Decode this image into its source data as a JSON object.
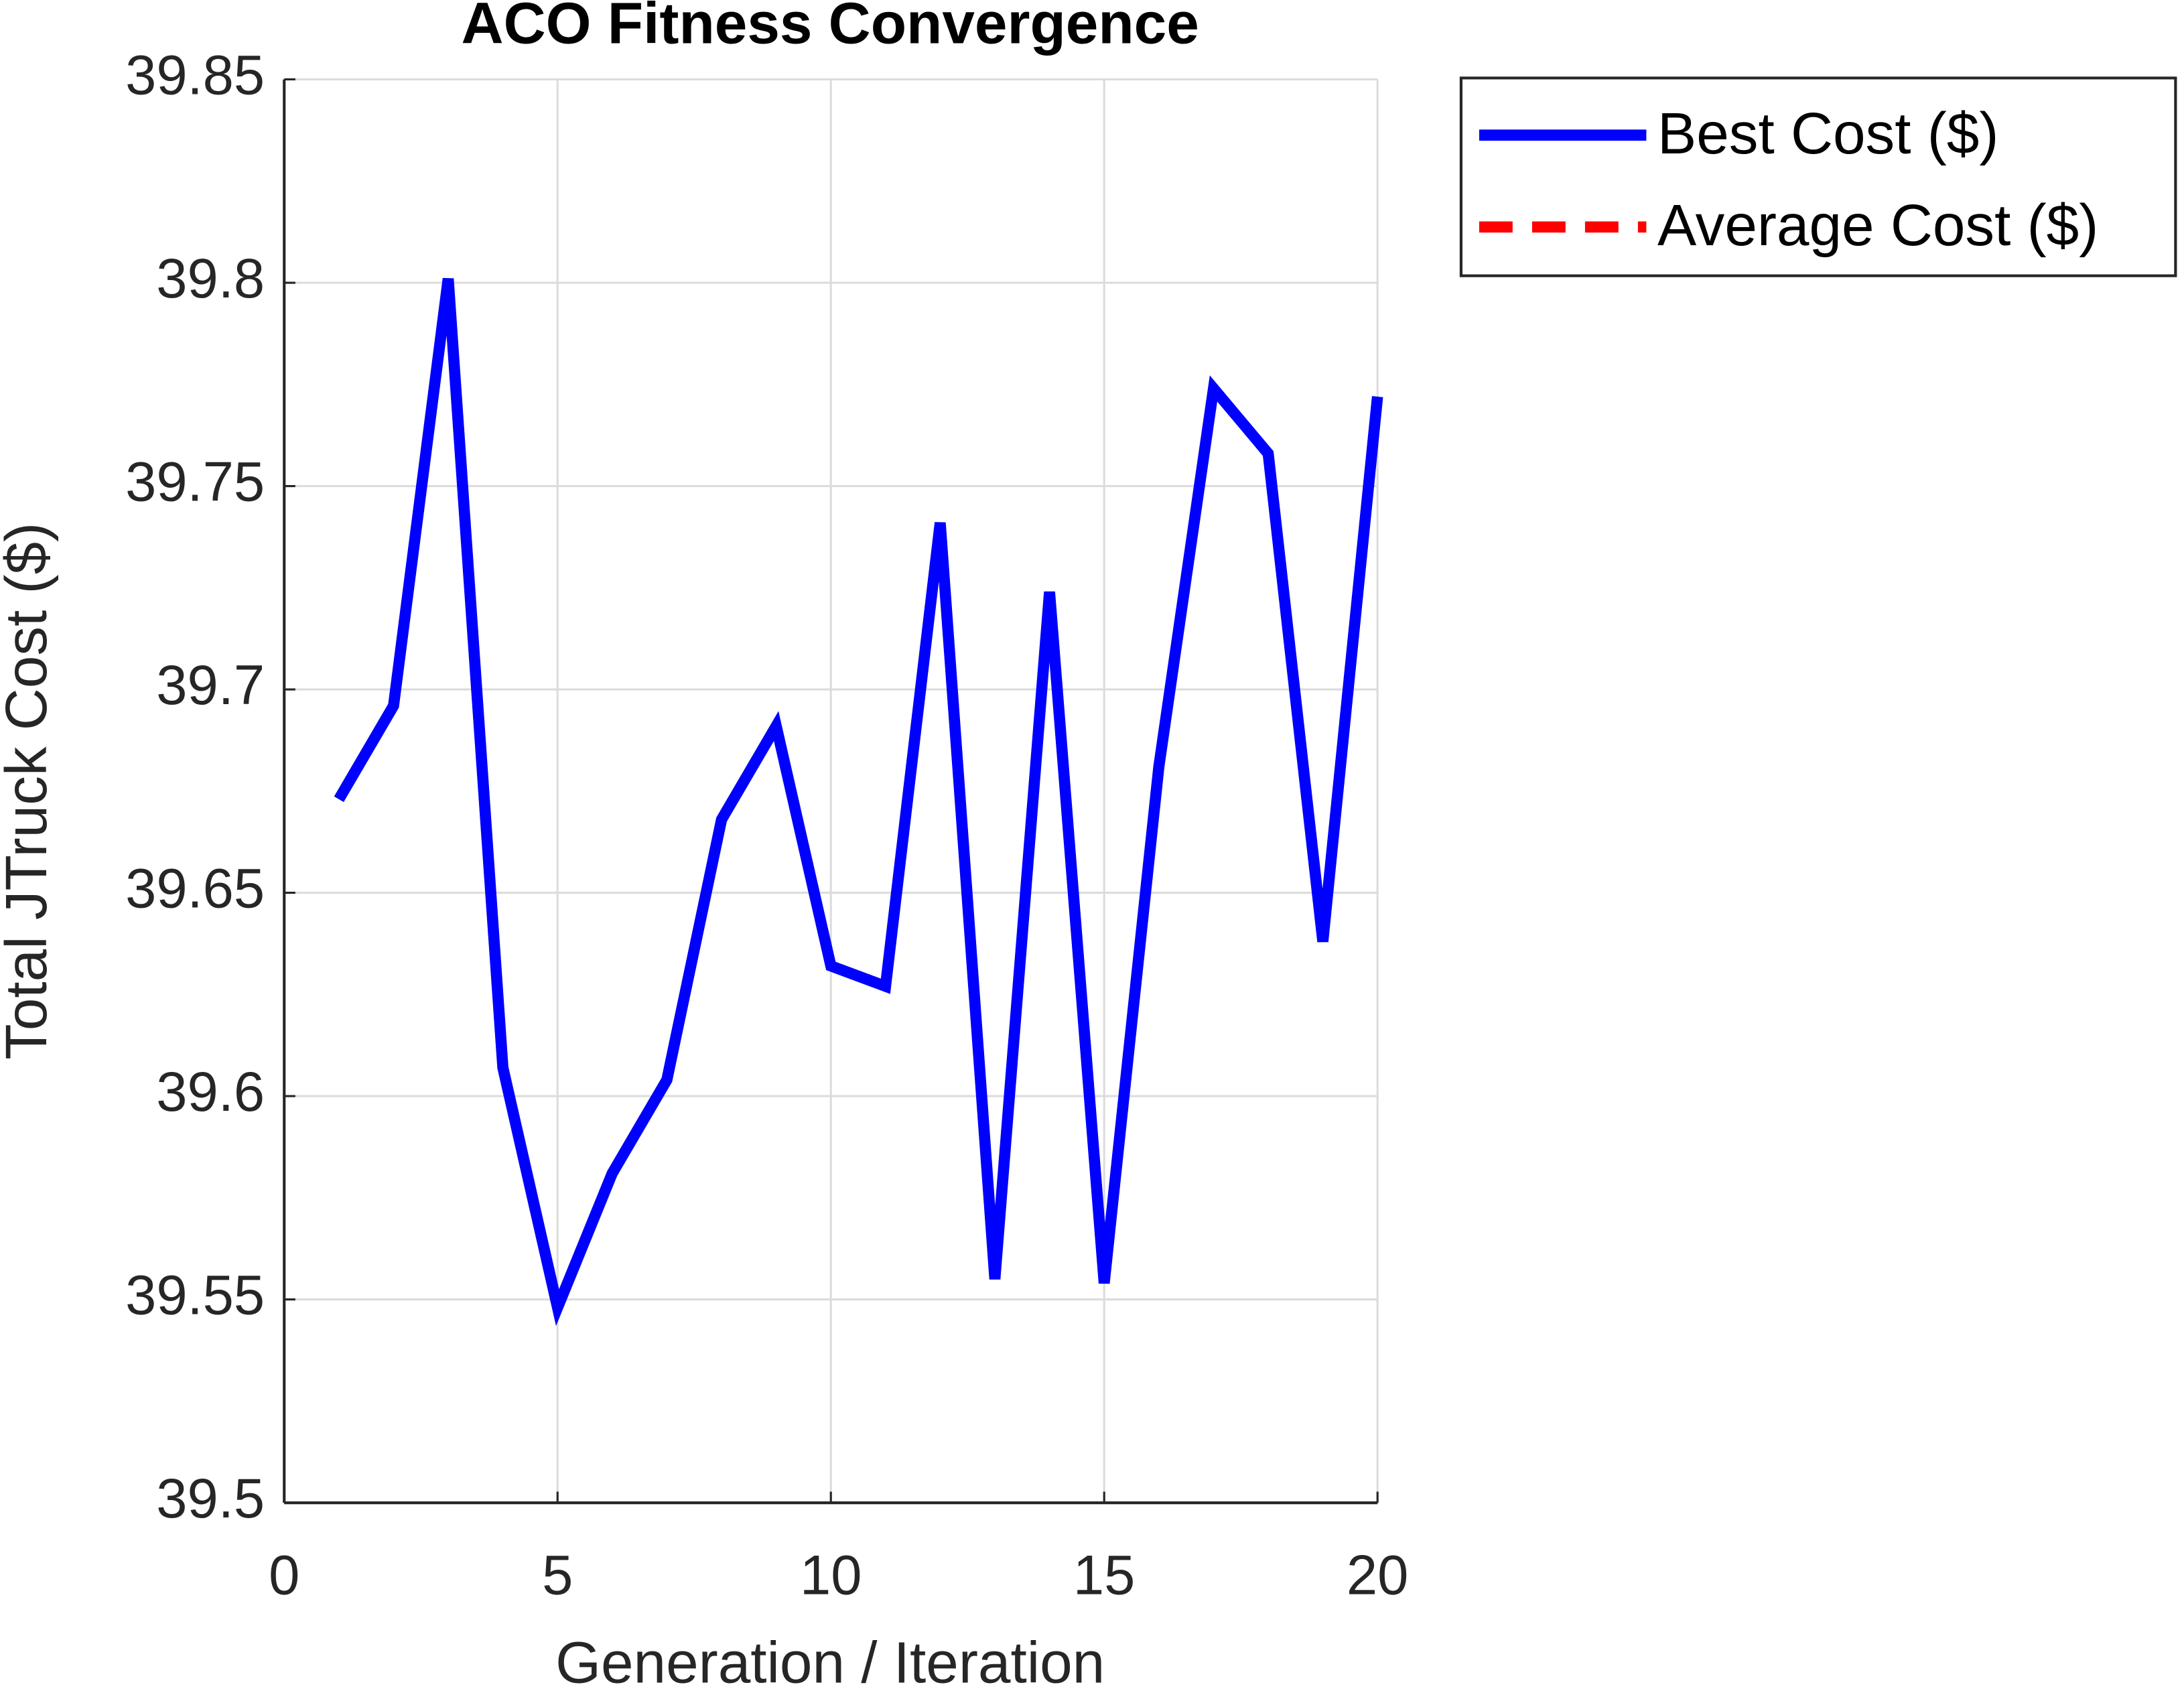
{
  "chart_data": {
    "type": "line",
    "title": "ACO Fitness Convergence",
    "xlabel": "Generation / Iteration",
    "ylabel": "Total JTruck Cost ($)",
    "x": [
      1,
      2,
      3,
      4,
      5,
      6,
      7,
      8,
      9,
      10,
      11,
      12,
      13,
      14,
      15,
      16,
      17,
      18,
      19,
      20
    ],
    "series": [
      {
        "name": "Best Cost ($)",
        "color": "#0000ff",
        "style": "solid",
        "values": [
          39.673,
          39.696,
          39.801,
          39.607,
          39.548,
          39.581,
          39.604,
          39.668,
          39.691,
          39.632,
          39.627,
          39.741,
          39.555,
          39.724,
          39.554,
          39.681,
          39.774,
          39.758,
          39.638,
          39.772
        ]
      },
      {
        "name": "Average Cost ($)",
        "color": "#ff0000",
        "style": "dashed",
        "values": [
          null,
          null,
          null,
          null,
          null,
          null,
          null,
          null,
          null,
          null,
          null,
          null,
          null,
          null,
          null,
          null,
          null,
          null,
          null,
          null
        ]
      }
    ],
    "xlim": [
      0,
      20
    ],
    "xticks": [
      0,
      5,
      10,
      15,
      20
    ],
    "ylim": [
      39.5,
      39.85
    ],
    "yticks": [
      39.5,
      39.55,
      39.6,
      39.65,
      39.7,
      39.75,
      39.8,
      39.85
    ],
    "grid": true,
    "legend": "outside-right-top"
  }
}
